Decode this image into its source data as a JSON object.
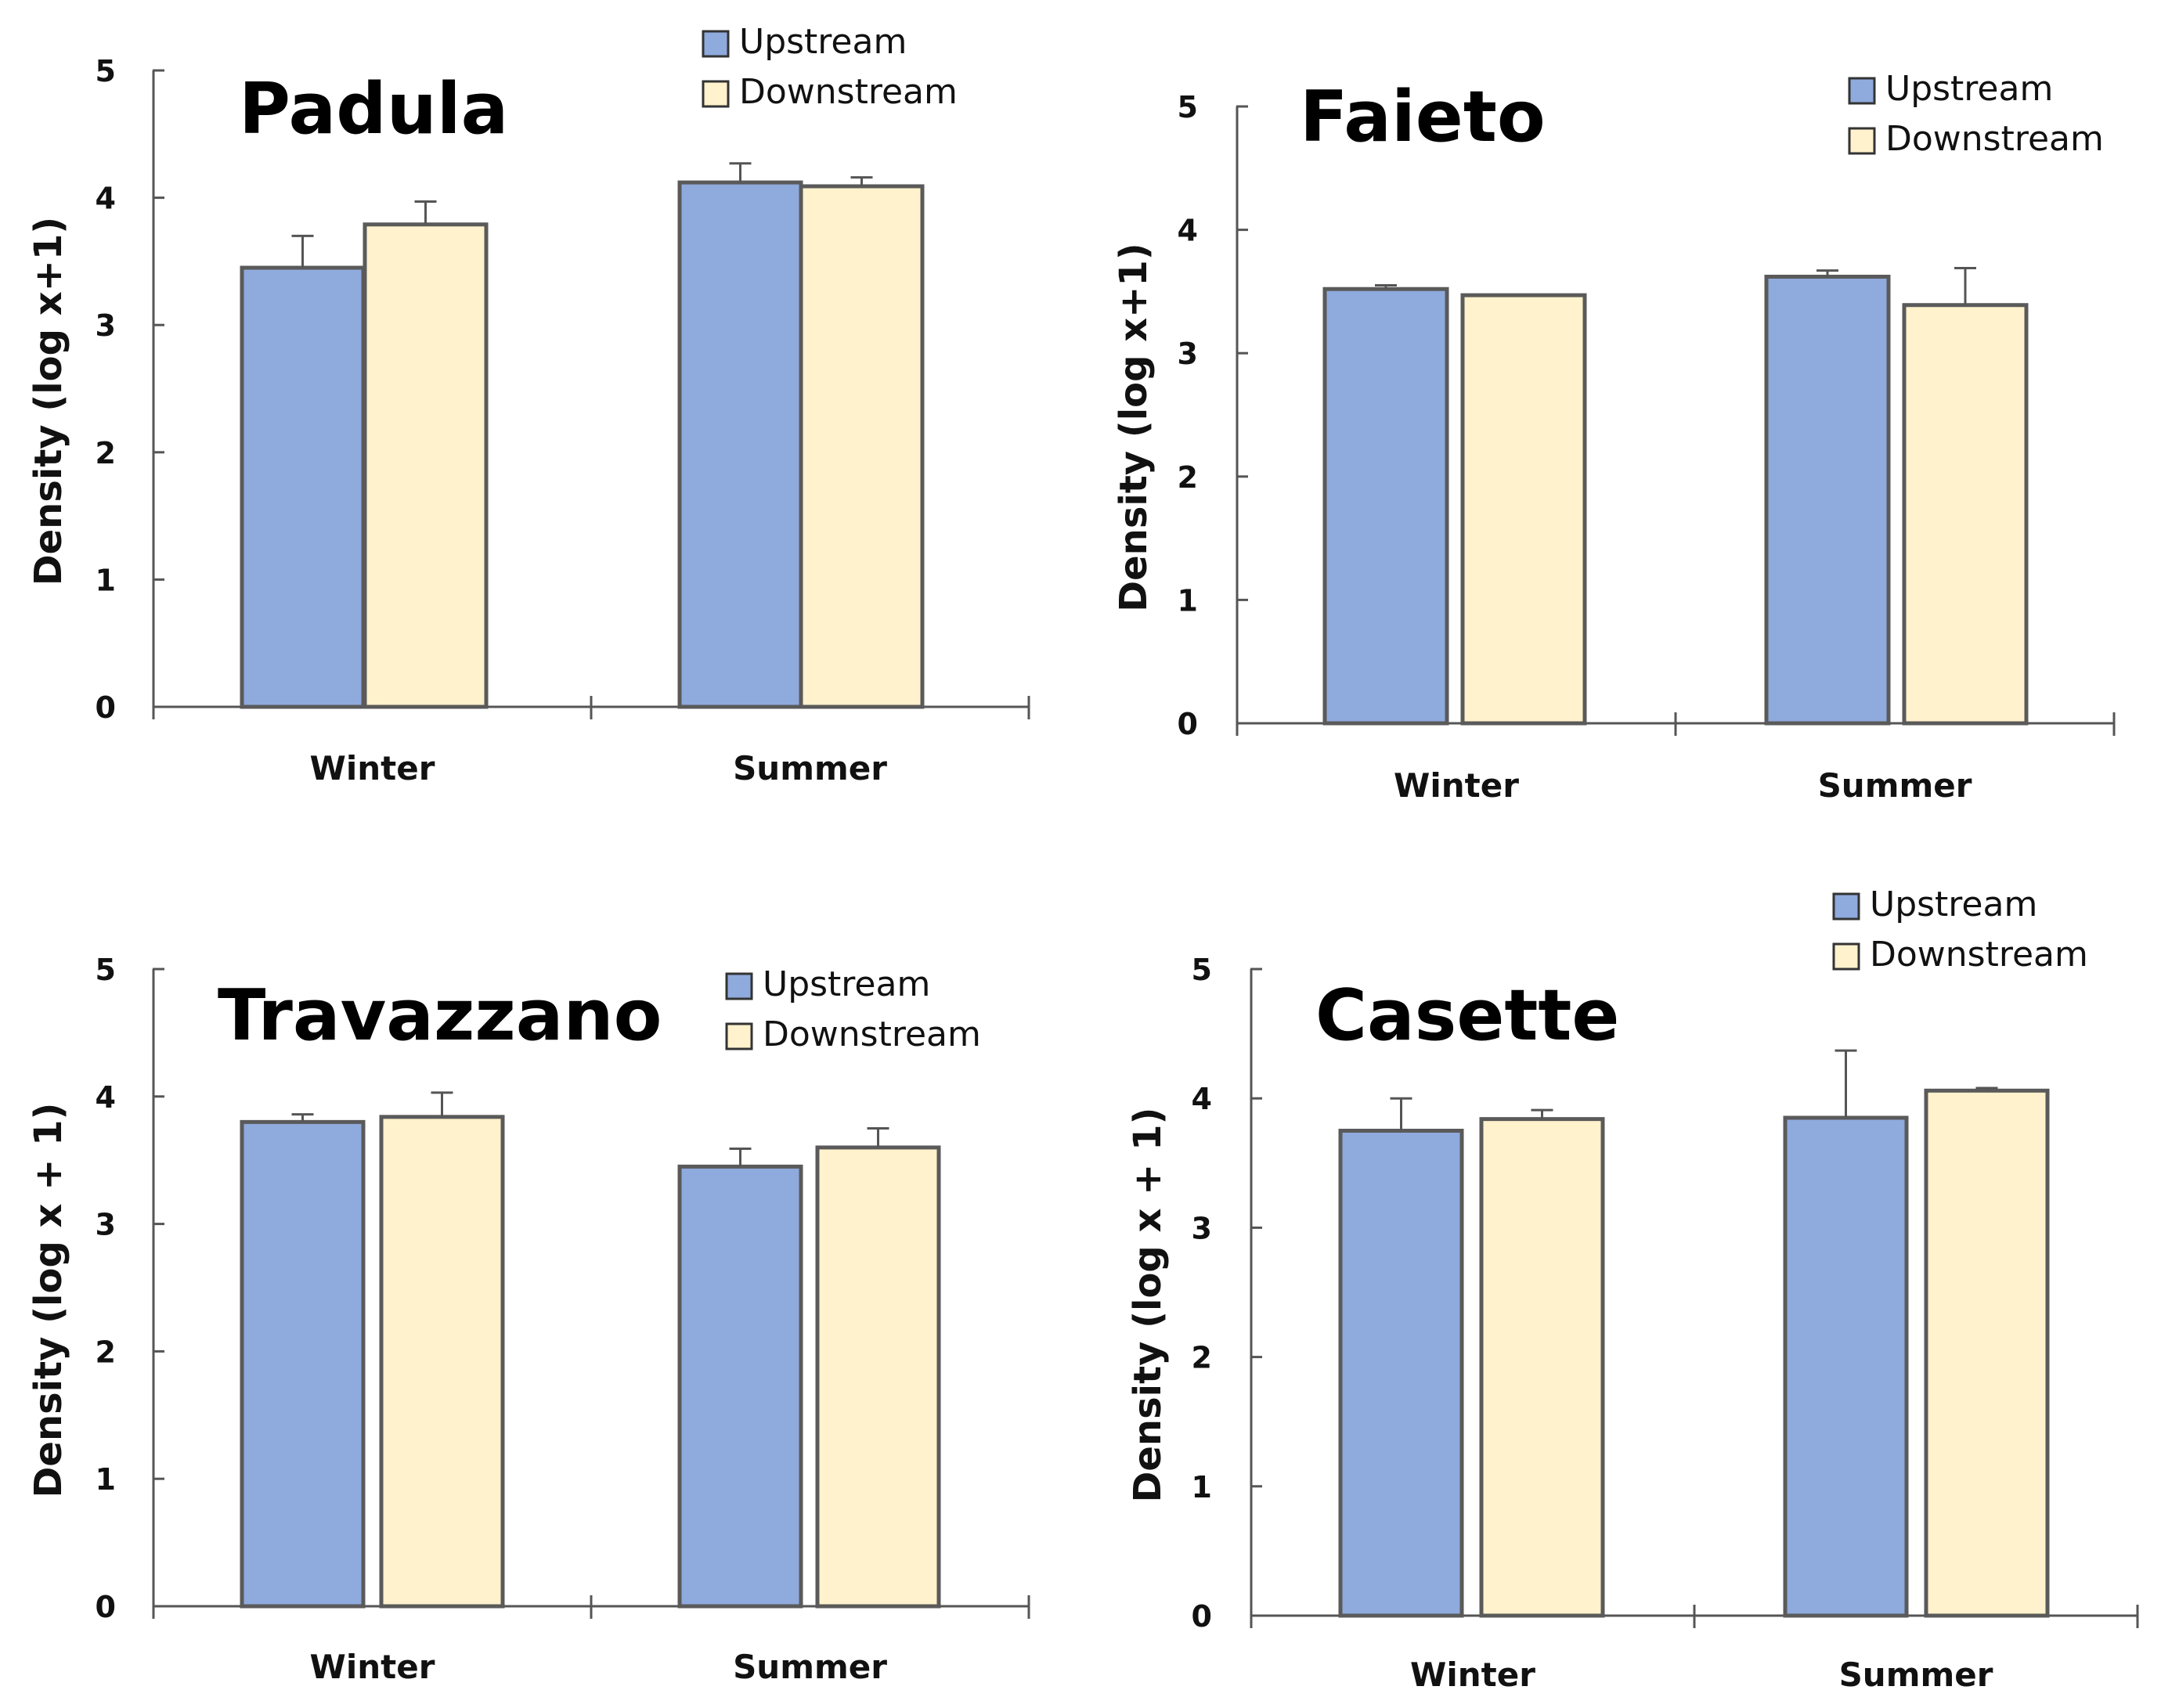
{
  "colors": {
    "upstream": "#8FAADC",
    "downstream": "#FFF2CC",
    "bar_stroke": "#5a5a5a",
    "axis": "#555555"
  },
  "chart_data": [
    {
      "type": "bar",
      "title": "Padula",
      "categories": [
        "Winter",
        "Summer"
      ],
      "ylabel": "Density (log x+1)",
      "ylim": [
        0,
        5
      ],
      "yticks": [
        "0",
        "1",
        "2",
        "3",
        "4",
        "5"
      ],
      "series": [
        {
          "name": "Upstream",
          "values": [
            3.45,
            4.12
          ],
          "errors": [
            0.25,
            0.15
          ]
        },
        {
          "name": "Downstream",
          "values": [
            3.79,
            4.09
          ],
          "errors": [
            0.18,
            0.07
          ]
        }
      ],
      "legend": [
        "Upstream",
        "Downstream"
      ]
    },
    {
      "type": "bar",
      "title": "Faieto",
      "categories": [
        "Winter",
        "Summer"
      ],
      "ylabel": "Density (log x+1)",
      "ylim": [
        0,
        5
      ],
      "yticks": [
        "0",
        "1",
        "2",
        "3",
        "4",
        "5"
      ],
      "series": [
        {
          "name": "Upstream",
          "values": [
            3.52,
            3.62
          ],
          "errors": [
            0.03,
            0.05
          ]
        },
        {
          "name": "Downstream",
          "values": [
            3.47,
            3.39
          ],
          "errors": [
            0.0,
            0.3
          ]
        }
      ],
      "legend": [
        "Upstream",
        "Downstream"
      ]
    },
    {
      "type": "bar",
      "title": "Travazzano",
      "categories": [
        "Winter",
        "Summer"
      ],
      "ylabel": "Density (log x + 1)",
      "ylim": [
        0,
        5
      ],
      "yticks": [
        "0",
        "1",
        "2",
        "3",
        "4",
        "5"
      ],
      "series": [
        {
          "name": "Upstream",
          "values": [
            3.8,
            3.45
          ],
          "errors": [
            0.06,
            0.14
          ]
        },
        {
          "name": "Downstream",
          "values": [
            3.84,
            3.6
          ],
          "errors": [
            0.19,
            0.15
          ]
        }
      ],
      "legend": [
        "Upstream",
        "Downstream"
      ]
    },
    {
      "type": "bar",
      "title": "Casette",
      "categories": [
        "Winter",
        "Summer"
      ],
      "ylabel": "Density (log x + 1)",
      "ylim": [
        0,
        5
      ],
      "yticks": [
        "0",
        "1",
        "2",
        "3",
        "4",
        "5"
      ],
      "series": [
        {
          "name": "Upstream",
          "values": [
            3.75,
            3.85
          ],
          "errors": [
            0.25,
            0.52
          ]
        },
        {
          "name": "Downstream",
          "values": [
            3.84,
            4.06
          ],
          "errors": [
            0.07,
            0.02
          ]
        }
      ],
      "legend": [
        "Upstream",
        "Downstream"
      ]
    }
  ]
}
